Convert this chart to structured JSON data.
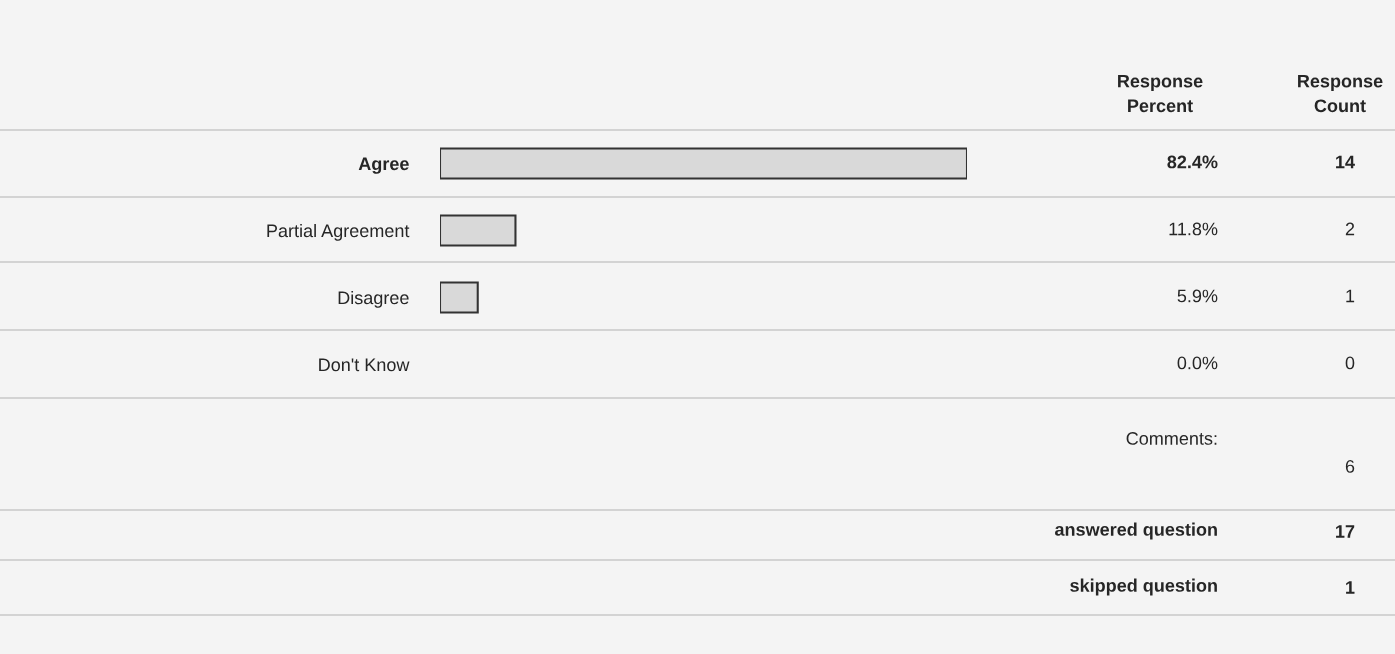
{
  "chart_data": {
    "type": "bar",
    "orientation": "horizontal",
    "categories": [
      "Agree",
      "Partial Agreement",
      "Disagree",
      "Don't Know"
    ],
    "values": [
      82.4,
      11.8,
      5.9,
      0.0
    ],
    "value_labels": [
      "82.4%",
      "11.8%",
      "5.9%",
      "0.0%"
    ],
    "color": "#d9d9d9",
    "tick_labels": "y",
    "grid": false,
    "legend": false,
    "annotations": [
      "Response\nPercent",
      "Response\nCount",
      "14",
      "2",
      "1",
      "0",
      "Comments:",
      "6",
      "answered question",
      "17",
      "skipped question",
      "1"
    ]
  }
}
